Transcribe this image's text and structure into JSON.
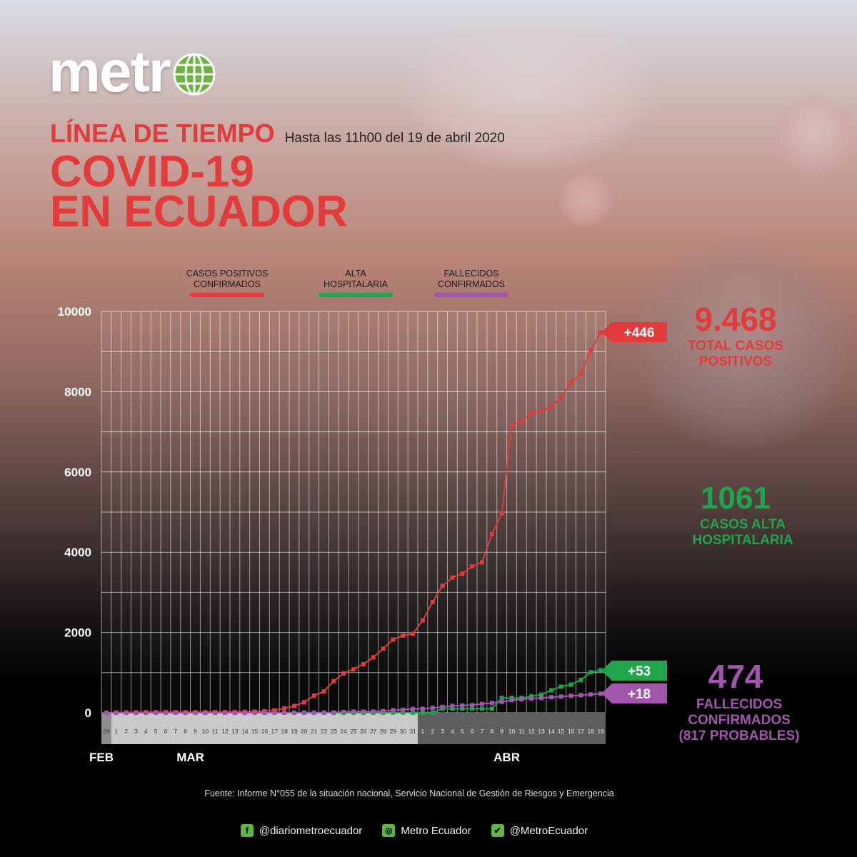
{
  "logo": {
    "text": "metr"
  },
  "title": {
    "small": "LÍNEA DE TIEMPO",
    "subtitle": "Hasta las 11h00 del 19 de abril 2020",
    "line1": "COVID-19",
    "line2": "EN ECUADOR"
  },
  "legend": [
    {
      "label1": "CASOS POSITIVOS",
      "label2": "CONFIRMADOS",
      "color": "#e23b3b"
    },
    {
      "label1": "ALTA",
      "label2": "HOSPITALARIA",
      "color": "#1fa64c"
    },
    {
      "label1": "FALLECIDOS",
      "label2": "CONFIRMADOS",
      "color": "#a255ad"
    }
  ],
  "side": {
    "total_num": "9.468",
    "total_lbl1": "TOTAL CASOS",
    "total_lbl2": "POSITIVOS",
    "alta_num": "1061",
    "alta_lbl1": "CASOS ALTA",
    "alta_lbl2": "HOSPITALARIA",
    "fall_num": "474",
    "fall_lbl1": "FALLECIDOS",
    "fall_lbl2": "CONFIRMADOS",
    "fall_lbl3": "(817 PROBABLES)"
  },
  "colors": {
    "red": "#e23b3b",
    "green": "#1fa64c",
    "purple": "#a255ad"
  },
  "source": "Fuente: Informe N°055 de la situación nacional, Servicio Nacional de Gestión de Riesgos y Emergencia",
  "social": [
    {
      "icon": "facebook-icon",
      "glyph": "f",
      "text": "@diariometroecuador"
    },
    {
      "icon": "instagram-icon",
      "glyph": "◎",
      "text": "Metro Ecuador"
    },
    {
      "icon": "twitter-icon",
      "glyph": "✔",
      "text": "@MetroEcuador"
    }
  ],
  "chart_data": {
    "type": "line",
    "ylim": [
      0,
      10000
    ],
    "y_ticks": [
      0,
      2000,
      4000,
      6000,
      8000,
      10000
    ],
    "x_day_labels": [
      "29",
      "1",
      "2",
      "3",
      "4",
      "5",
      "6",
      "7",
      "8",
      "9",
      "10",
      "11",
      "12",
      "13",
      "14",
      "15",
      "16",
      "17",
      "18",
      "19",
      "20",
      "21",
      "22",
      "23",
      "24",
      "25",
      "26",
      "27",
      "28",
      "29",
      "30",
      "31",
      "1",
      "2",
      "3",
      "4",
      "5",
      "6",
      "7",
      "8",
      "9",
      "10",
      "11",
      "12",
      "13",
      "14",
      "15",
      "16",
      "17",
      "18",
      "19"
    ],
    "month_labels": [
      "FEB",
      "MAR",
      "ABR"
    ],
    "series": [
      {
        "key": "casos",
        "color": "#e23b3b",
        "end_label": "+446",
        "values": [
          1,
          6,
          7,
          10,
          13,
          14,
          14,
          14,
          14,
          14,
          14,
          15,
          15,
          17,
          23,
          28,
          37,
          58,
          111,
          168,
          260,
          426,
          532,
          789,
          981,
          1082,
          1211,
          1382,
          1595,
          1823,
          1924,
          1966,
          2302,
          2758,
          3163,
          3368,
          3465,
          3646,
          3747,
          4450,
          4965,
          7161,
          7257,
          7466,
          7529,
          7603,
          7858,
          8225,
          8450,
          9022,
          9468
        ]
      },
      {
        "key": "alta",
        "color": "#1fa64c",
        "end_label": "+53",
        "values": [
          0,
          0,
          0,
          0,
          0,
          0,
          0,
          0,
          0,
          0,
          0,
          0,
          0,
          0,
          0,
          0,
          0,
          0,
          0,
          0,
          0,
          0,
          0,
          0,
          0,
          0,
          0,
          0,
          0,
          3,
          3,
          3,
          3,
          3,
          100,
          100,
          100,
          100,
          100,
          100,
          368,
          368,
          368,
          410,
          450,
          560,
          650,
          700,
          820,
          1008,
          1061
        ]
      },
      {
        "key": "fallecidos",
        "color": "#a255ad",
        "end_label": "+18",
        "values": [
          0,
          0,
          0,
          0,
          0,
          0,
          0,
          0,
          0,
          0,
          0,
          0,
          0,
          0,
          1,
          2,
          2,
          2,
          2,
          3,
          4,
          4,
          5,
          7,
          18,
          27,
          28,
          29,
          41,
          60,
          75,
          93,
          98,
          120,
          145,
          172,
          180,
          191,
          220,
          242,
          272,
          315,
          333,
          355,
          369,
          388,
          403,
          421,
          437,
          456,
          474
        ]
      }
    ]
  }
}
